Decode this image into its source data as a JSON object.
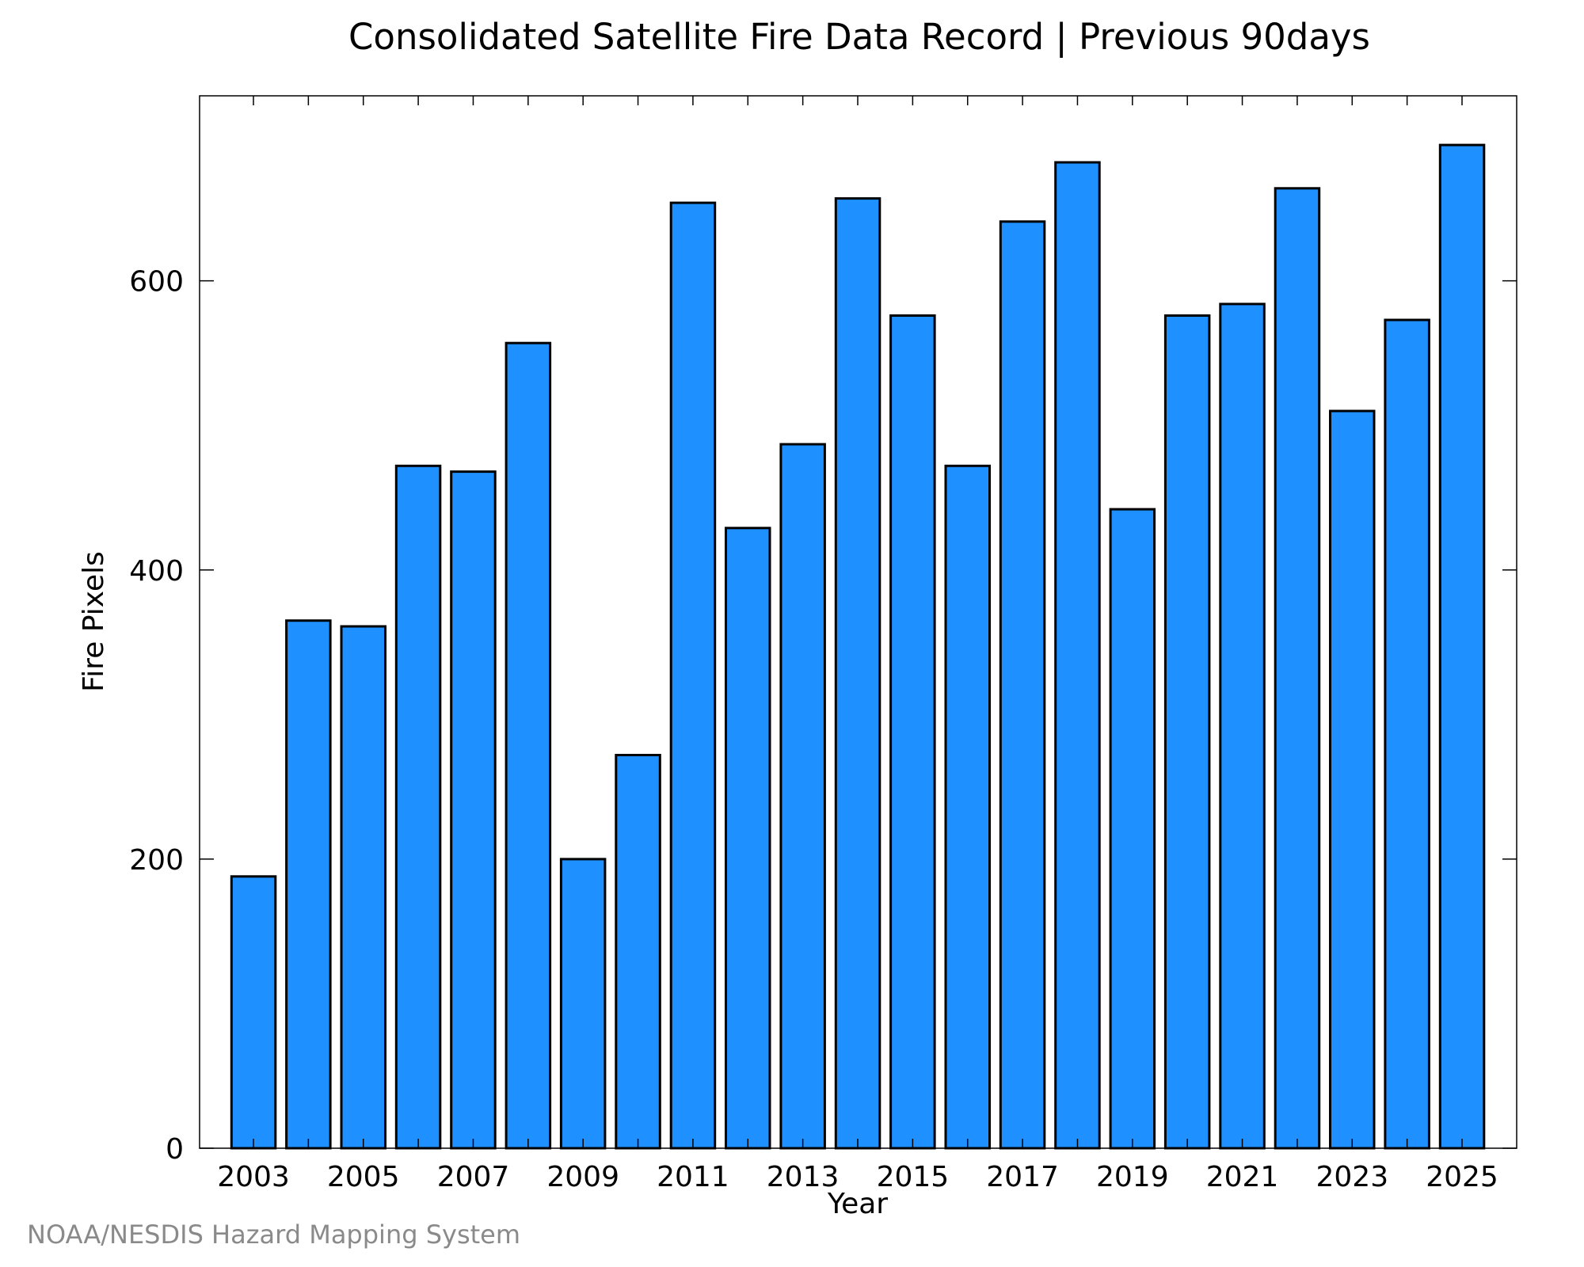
{
  "chart_data": {
    "type": "bar",
    "title": "Consolidated Satellite Fire Data Record | Previous 90days",
    "xlabel": "Year",
    "ylabel": "Fire Pixels",
    "categories": [
      "2003",
      "2004",
      "2005",
      "2006",
      "2007",
      "2008",
      "2009",
      "2010",
      "2011",
      "2012",
      "2013",
      "2014",
      "2015",
      "2016",
      "2017",
      "2018",
      "2019",
      "2020",
      "2021",
      "2022",
      "2023",
      "2024",
      "2025"
    ],
    "values": [
      188,
      365,
      361,
      472,
      468,
      557,
      200,
      272,
      654,
      429,
      487,
      657,
      576,
      472,
      641,
      682,
      442,
      576,
      584,
      664,
      510,
      573,
      694
    ],
    "x_tick_labels": [
      "2003",
      "2005",
      "2007",
      "2009",
      "2011",
      "2013",
      "2015",
      "2017",
      "2019",
      "2021",
      "2023",
      "2025"
    ],
    "y_ticks": [
      0,
      200,
      400,
      600
    ],
    "ylim": [
      0,
      728
    ],
    "grid": false,
    "bar_color": "#1e90ff",
    "bar_edge_color": "#000000"
  },
  "footer": {
    "credit": "NOAA/NESDIS Hazard Mapping System"
  }
}
